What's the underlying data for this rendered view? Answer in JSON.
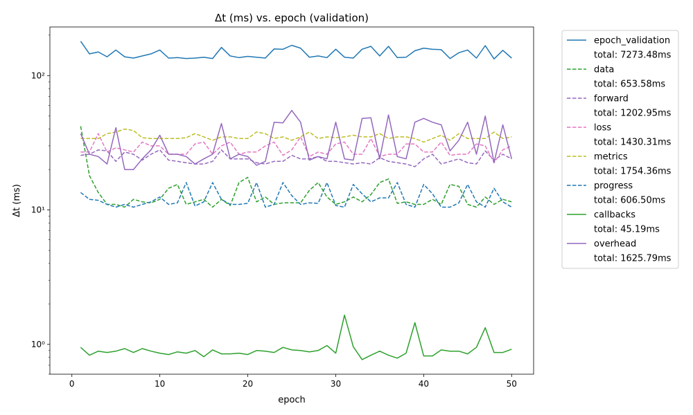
{
  "chart_data": {
    "type": "line",
    "title": "Δt (ms) vs. epoch (validation)",
    "xlabel": "epoch",
    "ylabel": "Δt (ms)",
    "xlim": [
      -2.5,
      52.5
    ],
    "ylim": [
      0.6,
      230
    ],
    "yscale": "log",
    "x_ticks": [
      0,
      10,
      20,
      30,
      40,
      50
    ],
    "y_ticks": [
      {
        "value": 1,
        "label": "10⁰"
      },
      {
        "value": 10,
        "label": "10¹"
      },
      {
        "value": 100,
        "label": "10²"
      }
    ],
    "grid": false,
    "legend_position": "outside-right",
    "x": [
      1,
      2,
      3,
      4,
      5,
      6,
      7,
      8,
      9,
      10,
      11,
      12,
      13,
      14,
      15,
      16,
      17,
      18,
      19,
      20,
      21,
      22,
      23,
      24,
      25,
      26,
      27,
      28,
      29,
      30,
      31,
      32,
      33,
      34,
      35,
      36,
      37,
      38,
      39,
      40,
      41,
      42,
      43,
      44,
      45,
      46,
      47,
      48,
      49,
      50
    ],
    "series": [
      {
        "name": "epoch_validation",
        "total_label": "total: 7273.48ms",
        "color": "#1f77b4",
        "dash": "solid",
        "values": [
          180,
          145,
          150,
          138,
          155,
          138,
          135,
          140,
          145,
          155,
          135,
          136,
          134,
          135,
          137,
          134,
          162,
          140,
          136,
          139,
          137,
          135,
          158,
          157,
          168,
          160,
          137,
          140,
          136,
          157,
          137,
          135,
          157,
          165,
          140,
          165,
          136,
          137,
          153,
          160,
          157,
          156,
          134,
          148,
          155,
          135,
          167,
          133,
          154,
          135
        ]
      },
      {
        "name": "data",
        "total_label": "total: 653.58ms",
        "color": "#2ca02c",
        "dash": "dashed",
        "values": [
          42,
          18,
          13.5,
          11,
          11,
          10.5,
          12,
          11.5,
          11.3,
          12,
          14.5,
          15.5,
          11,
          11.5,
          12,
          10.5,
          12,
          10.8,
          16,
          17.5,
          11.5,
          12.5,
          11,
          11.3,
          11.3,
          11.3,
          14,
          16,
          12.5,
          11,
          11.5,
          12.5,
          11.5,
          13,
          16,
          17,
          11.2,
          11.5,
          11,
          11,
          12,
          11,
          15.5,
          15,
          11,
          10.5,
          12.5,
          11,
          12,
          11.5
        ]
      },
      {
        "name": "forward",
        "total_label": "total: 1202.95ms",
        "color": "#9467bd",
        "dash": "dashed",
        "values": [
          25.5,
          26,
          28,
          27.5,
          23,
          27,
          26,
          23.5,
          26,
          28,
          23.5,
          23,
          22.5,
          22,
          22,
          23,
          28,
          24,
          24,
          24,
          22.5,
          22,
          23,
          23,
          25.5,
          24,
          24,
          25,
          23,
          23,
          22.5,
          22,
          22.5,
          22,
          24.5,
          23,
          22.5,
          22,
          21,
          24,
          26,
          22,
          23,
          24,
          22.5,
          22,
          27.5,
          23.5,
          26,
          24
        ]
      },
      {
        "name": "loss",
        "total_label": "total: 1430.31ms",
        "color": "#e377c2",
        "dash": "dashed",
        "values": [
          27,
          27,
          37,
          27,
          29,
          28,
          27,
          32,
          30,
          30,
          26,
          26,
          26,
          31,
          32,
          26,
          30,
          32,
          26,
          27,
          27,
          30,
          32,
          25.5,
          28,
          35,
          25,
          27,
          26,
          31,
          32,
          26,
          26,
          34,
          25,
          26,
          26,
          31,
          31,
          27,
          27,
          32,
          25.5,
          26,
          26,
          31,
          30,
          22.5,
          28,
          30
        ]
      },
      {
        "name": "metrics",
        "total_label": "total: 1754.36ms",
        "color": "#bcbd22",
        "dash": "dashed",
        "values": [
          34,
          34,
          34,
          37,
          38,
          40,
          39,
          34.5,
          34,
          34,
          34,
          34,
          34.5,
          37,
          35,
          33,
          35,
          35,
          34,
          34,
          38,
          37,
          34,
          35,
          33,
          35,
          38,
          34,
          35,
          34.5,
          35,
          36,
          35,
          35,
          37,
          34,
          35,
          35,
          34,
          32,
          34,
          36,
          33,
          37,
          34,
          34,
          34,
          38,
          34,
          35
        ]
      },
      {
        "name": "progress",
        "total_label": "total: 606.50ms",
        "color": "#1f77b4",
        "dash": "dashed",
        "values": [
          13.5,
          12,
          11.8,
          11,
          10.5,
          11,
          10.5,
          11,
          11.5,
          12.5,
          11,
          11.3,
          16,
          10.7,
          11.5,
          16,
          12,
          11,
          11,
          11.2,
          16,
          10.5,
          11,
          16,
          12.8,
          11,
          11.3,
          11.2,
          16,
          10.8,
          10.5,
          15.5,
          13.2,
          11.5,
          12.3,
          12.3,
          16,
          11,
          10.5,
          15.5,
          13.2,
          10.5,
          10.5,
          11.3,
          15.5,
          11.5,
          10.5,
          14.5,
          11.5,
          10.5
        ]
      },
      {
        "name": "callbacks",
        "total_label": "total: 45.19ms",
        "color": "#2ca02c",
        "dash": "solid",
        "values": [
          0.95,
          0.83,
          0.89,
          0.87,
          0.89,
          0.93,
          0.87,
          0.93,
          0.89,
          0.86,
          0.84,
          0.88,
          0.86,
          0.9,
          0.81,
          0.91,
          0.85,
          0.85,
          0.86,
          0.84,
          0.9,
          0.89,
          0.87,
          0.95,
          0.91,
          0.9,
          0.88,
          0.9,
          0.98,
          0.86,
          1.65,
          0.96,
          0.77,
          0.83,
          0.89,
          0.83,
          0.79,
          0.86,
          1.45,
          0.82,
          0.82,
          0.91,
          0.89,
          0.89,
          0.85,
          0.95,
          1.33,
          0.87,
          0.87,
          0.92
        ]
      },
      {
        "name": "overhead",
        "total_label": "total: 1625.79ms",
        "color": "#9467bd",
        "dash": "solid",
        "values": [
          37,
          26,
          25,
          22,
          41,
          20,
          20,
          24,
          28,
          36,
          26,
          26,
          25,
          22,
          24,
          26,
          44,
          24,
          26,
          25,
          21.5,
          23,
          45,
          44.5,
          55,
          45,
          23.5,
          25,
          24,
          45,
          24,
          23.5,
          48,
          48.5,
          24,
          51,
          25,
          24,
          45,
          48,
          45,
          43,
          27.5,
          33,
          45,
          26,
          50,
          22.5,
          43,
          24
        ]
      }
    ]
  }
}
